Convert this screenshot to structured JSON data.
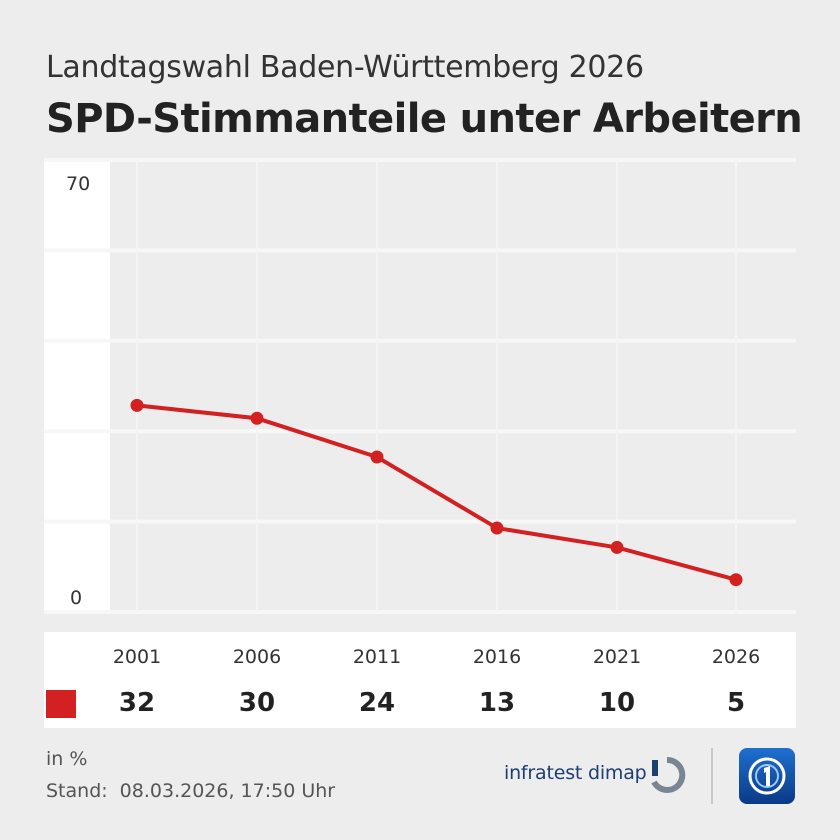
{
  "header": {
    "supertitle": "Landtagswahl Baden-Württemberg 2026",
    "title": "SPD-Stimmanteile unter Arbeitern"
  },
  "chart_data": {
    "type": "line",
    "categories": [
      "2001",
      "2006",
      "2011",
      "2016",
      "2021",
      "2026"
    ],
    "series": [
      {
        "values": [
          32,
          30,
          24,
          13,
          10,
          5
        ],
        "color": "#d32020"
      }
    ],
    "ylim": [
      0,
      70
    ],
    "ytick_labels": [
      "70",
      "0"
    ],
    "grid": true,
    "xlabel": "",
    "ylabel": ""
  },
  "table": {
    "years": [
      "2001",
      "2006",
      "2011",
      "2016",
      "2021",
      "2026"
    ],
    "values": [
      "32",
      "30",
      "24",
      "13",
      "10",
      "5"
    ],
    "swatch_color": "#d32020"
  },
  "footer": {
    "unit": "in %",
    "stand_label": "Stand:",
    "stand_value": "08.03.2026, 17:50 Uhr",
    "brand": "infratest dimap",
    "brand_icon": "infratest-dimap-logo-icon",
    "channel_icon": "tagesschau-logo-icon"
  }
}
